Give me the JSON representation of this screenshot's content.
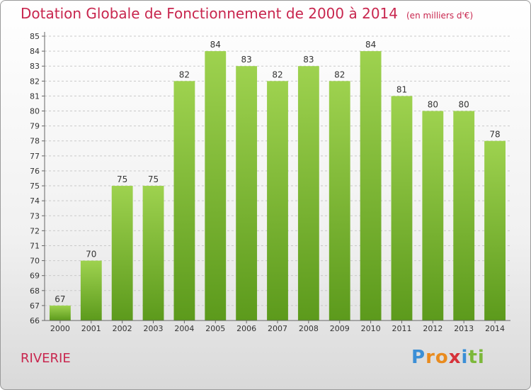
{
  "chart_data": {
    "type": "bar",
    "title": "Dotation Globale de Fonctionnement de 2000 à 2014",
    "subtitle": "(en milliers d'€)",
    "categories": [
      "2000",
      "2001",
      "2002",
      "2003",
      "2004",
      "2005",
      "2006",
      "2007",
      "2008",
      "2009",
      "2010",
      "2011",
      "2012",
      "2013",
      "2014"
    ],
    "values": [
      67,
      70,
      75,
      75,
      82,
      84,
      83,
      82,
      83,
      82,
      84,
      81,
      80,
      80,
      78
    ],
    "ylim": [
      66,
      85
    ],
    "yticks": [
      66,
      67,
      68,
      69,
      70,
      71,
      72,
      73,
      74,
      75,
      76,
      77,
      78,
      79,
      80,
      81,
      82,
      83,
      84,
      85
    ],
    "grid": true,
    "bar_color": "#7ab833"
  },
  "commune": "RIVERIE",
  "logo": [
    "P",
    "r",
    "o",
    "x",
    "i",
    "t",
    "i"
  ]
}
